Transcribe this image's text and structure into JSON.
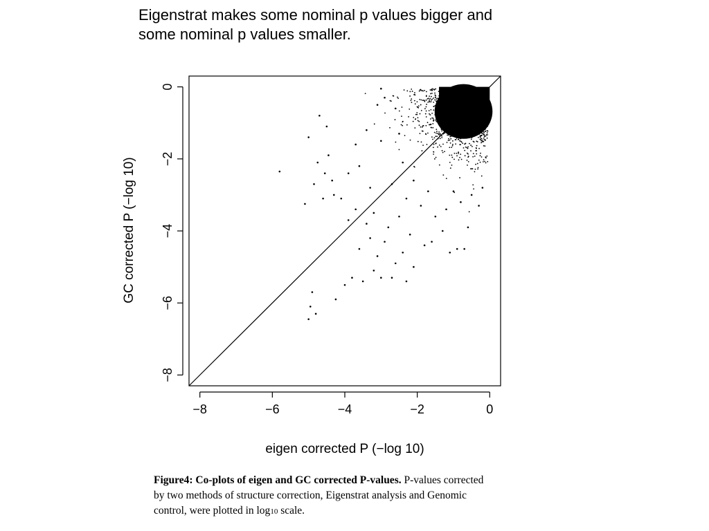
{
  "slide": {
    "title_line1": "Eigenstrat makes some nominal p values bigger and",
    "title_line2": "some nominal p values smaller."
  },
  "caption": {
    "bold": "Figure4: Co-plots of eigen and GC corrected P-values.",
    "line1_rest": "P-values corrected",
    "line2": "by two methods of structure correction, Eigenstrat analysis and Genomic",
    "line3_before": "control, were plotted in log",
    "line3_sub": "10",
    "line3_after": "scale."
  },
  "chart_data": {
    "type": "scatter",
    "xlabel": "eigen corrected P (−log 10)",
    "ylabel": "GC corrected P (−log 10)",
    "xlim": [
      -8.3,
      0.3
    ],
    "ylim": [
      -8.3,
      0.3
    ],
    "xticks": [
      -8,
      -6,
      -4,
      -2,
      0
    ],
    "yticks": [
      0,
      -2,
      -4,
      -6,
      -8
    ],
    "xtick_labels": [
      "−8",
      "−6",
      "−4",
      "−2",
      "0"
    ],
    "ytick_labels": [
      "0",
      "−2",
      "−4",
      "−6",
      "−8"
    ],
    "grid": false,
    "reference_line": {
      "from": [
        -8.3,
        -8.3
      ],
      "to": [
        0.3,
        0.3
      ]
    },
    "dense_region": {
      "x_range": [
        -2.0,
        0.0
      ],
      "y_range": [
        -2.0,
        0.0
      ]
    },
    "series": [
      {
        "values": [
          [
            -5.8,
            -2.35
          ],
          [
            -5.1,
            -3.25
          ],
          [
            -5.0,
            -1.4
          ],
          [
            -4.85,
            -2.7
          ],
          [
            -4.75,
            -2.1
          ],
          [
            -4.6,
            -3.1
          ],
          [
            -4.55,
            -2.4
          ],
          [
            -4.45,
            -1.9
          ],
          [
            -4.35,
            -2.6
          ],
          [
            -4.3,
            -3.0
          ],
          [
            -4.7,
            -0.8
          ],
          [
            -4.5,
            -1.1
          ],
          [
            -4.9,
            -5.7
          ],
          [
            -4.95,
            -6.1
          ],
          [
            -5.0,
            -6.45
          ],
          [
            -4.8,
            -6.3
          ],
          [
            -4.25,
            -5.9
          ],
          [
            -4.0,
            -5.5
          ],
          [
            -3.8,
            -5.3
          ],
          [
            -3.5,
            -5.4
          ],
          [
            -3.2,
            -5.1
          ],
          [
            -3.0,
            -5.3
          ],
          [
            -2.7,
            -5.3
          ],
          [
            -2.3,
            -5.4
          ],
          [
            -2.1,
            -5.0
          ],
          [
            -3.6,
            -4.5
          ],
          [
            -3.3,
            -4.2
          ],
          [
            -3.1,
            -4.7
          ],
          [
            -2.9,
            -4.3
          ],
          [
            -2.6,
            -4.9
          ],
          [
            -2.4,
            -4.6
          ],
          [
            -2.2,
            -4.1
          ],
          [
            -1.8,
            -4.4
          ],
          [
            -1.6,
            -4.3
          ],
          [
            -1.3,
            -4.0
          ],
          [
            -1.1,
            -4.6
          ],
          [
            -0.9,
            -4.5
          ],
          [
            -0.7,
            -4.5
          ],
          [
            -0.6,
            -3.9
          ],
          [
            -3.9,
            -3.7
          ],
          [
            -3.7,
            -3.4
          ],
          [
            -3.4,
            -3.8
          ],
          [
            -3.2,
            -3.5
          ],
          [
            -2.8,
            -3.9
          ],
          [
            -2.5,
            -3.6
          ],
          [
            -4.1,
            -3.1
          ],
          [
            -3.9,
            -2.4
          ],
          [
            -3.6,
            -2.2
          ],
          [
            -3.3,
            -2.8
          ],
          [
            -3.7,
            -1.6
          ],
          [
            -3.4,
            -1.2
          ],
          [
            -3.0,
            -1.5
          ],
          [
            -3.1,
            -0.5
          ],
          [
            -2.9,
            -0.3
          ],
          [
            -3.0,
            -0.05
          ],
          [
            -2.6,
            -0.6
          ],
          [
            -2.5,
            -1.3
          ],
          [
            -2.4,
            -2.1
          ],
          [
            -2.7,
            -2.7
          ],
          [
            -2.3,
            -3.1
          ],
          [
            -1.9,
            -3.3
          ],
          [
            -1.5,
            -3.6
          ],
          [
            -1.2,
            -3.4
          ],
          [
            -0.8,
            -3.2
          ],
          [
            -0.5,
            -3.0
          ],
          [
            -0.3,
            -3.3
          ],
          [
            -0.2,
            -2.8
          ],
          [
            -1.0,
            -2.9
          ],
          [
            -1.7,
            -2.9
          ],
          [
            -2.1,
            -2.6
          ]
        ]
      }
    ]
  }
}
